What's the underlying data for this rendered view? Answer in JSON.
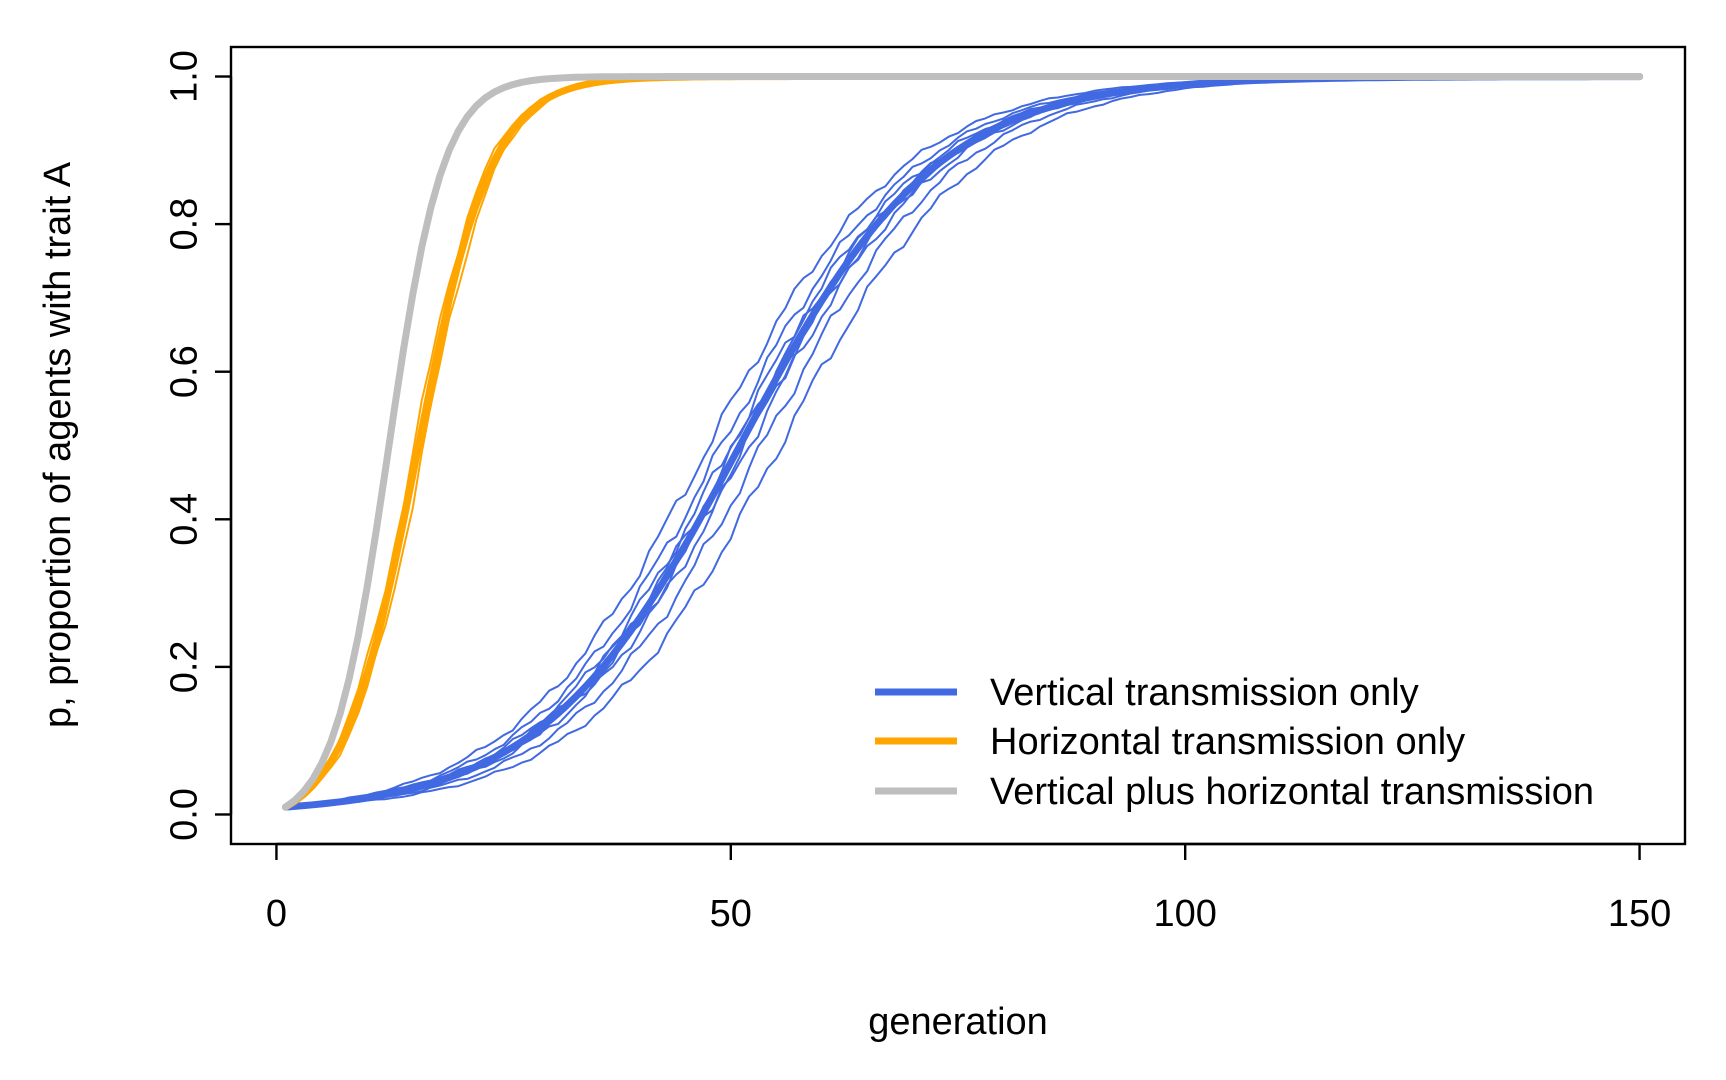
{
  "chart_data": {
    "type": "line",
    "title": "",
    "xlabel": "generation",
    "ylabel": "p, proportion of agents with trait A",
    "xlim": [
      -5,
      155
    ],
    "ylim": [
      -0.04,
      1.04
    ],
    "xticks": [
      0,
      50,
      100,
      150
    ],
    "xtick_labels": [
      "0",
      "50",
      "100",
      "150"
    ],
    "yticks": [
      0,
      0.2,
      0.4,
      0.6,
      0.8,
      1.0
    ],
    "ytick_labels": [
      "0.0",
      "0.2",
      "0.4",
      "0.6",
      "0.8",
      "1.0"
    ],
    "grid": false,
    "legend_position": "bottom-right",
    "generations": [
      1,
      150
    ],
    "series": [
      {
        "name": "Vertical transmission only",
        "color": "#4169E1",
        "initial_p": 0.01,
        "mean_model": {
          "form": "logistic",
          "midpoint_generation": 51,
          "rate": 0.092
        },
        "runs": [
          {
            "midpoint_generation": 50.5,
            "noise_phase": 0.0
          },
          {
            "midpoint_generation": 52.0,
            "noise_phase": 1.3
          },
          {
            "midpoint_generation": 49.0,
            "noise_phase": 2.1
          },
          {
            "midpoint_generation": 53.5,
            "noise_phase": 3.7
          },
          {
            "midpoint_generation": 51.5,
            "noise_phase": 4.4
          },
          {
            "midpoint_generation": 55.5,
            "noise_phase": 5.2
          },
          {
            "midpoint_generation": 47.5,
            "noise_phase": 0.8
          },
          {
            "midpoint_generation": 50.0,
            "noise_phase": 2.9
          }
        ]
      },
      {
        "name": "Horizontal transmission only",
        "color": "#FFA500",
        "initial_p": 0.01,
        "mean_model": {
          "form": "logistic",
          "midpoint_generation": 15.5,
          "rate": 0.245
        },
        "runs": [
          {
            "midpoint_generation": 15.3,
            "noise_phase": 0.4
          },
          {
            "midpoint_generation": 15.8,
            "noise_phase": 1.9
          },
          {
            "midpoint_generation": 15.5,
            "noise_phase": 3.1
          },
          {
            "midpoint_generation": 16.1,
            "noise_phase": 4.6
          },
          {
            "midpoint_generation": 15.0,
            "noise_phase": 5.5
          }
        ]
      },
      {
        "name": "Vertical plus horizontal transmission",
        "color": "#BEBEBE",
        "initial_p": 0.01,
        "mean_model": {
          "form": "logistic",
          "midpoint_generation": 12.3,
          "rate": 0.33
        },
        "runs": []
      }
    ]
  }
}
